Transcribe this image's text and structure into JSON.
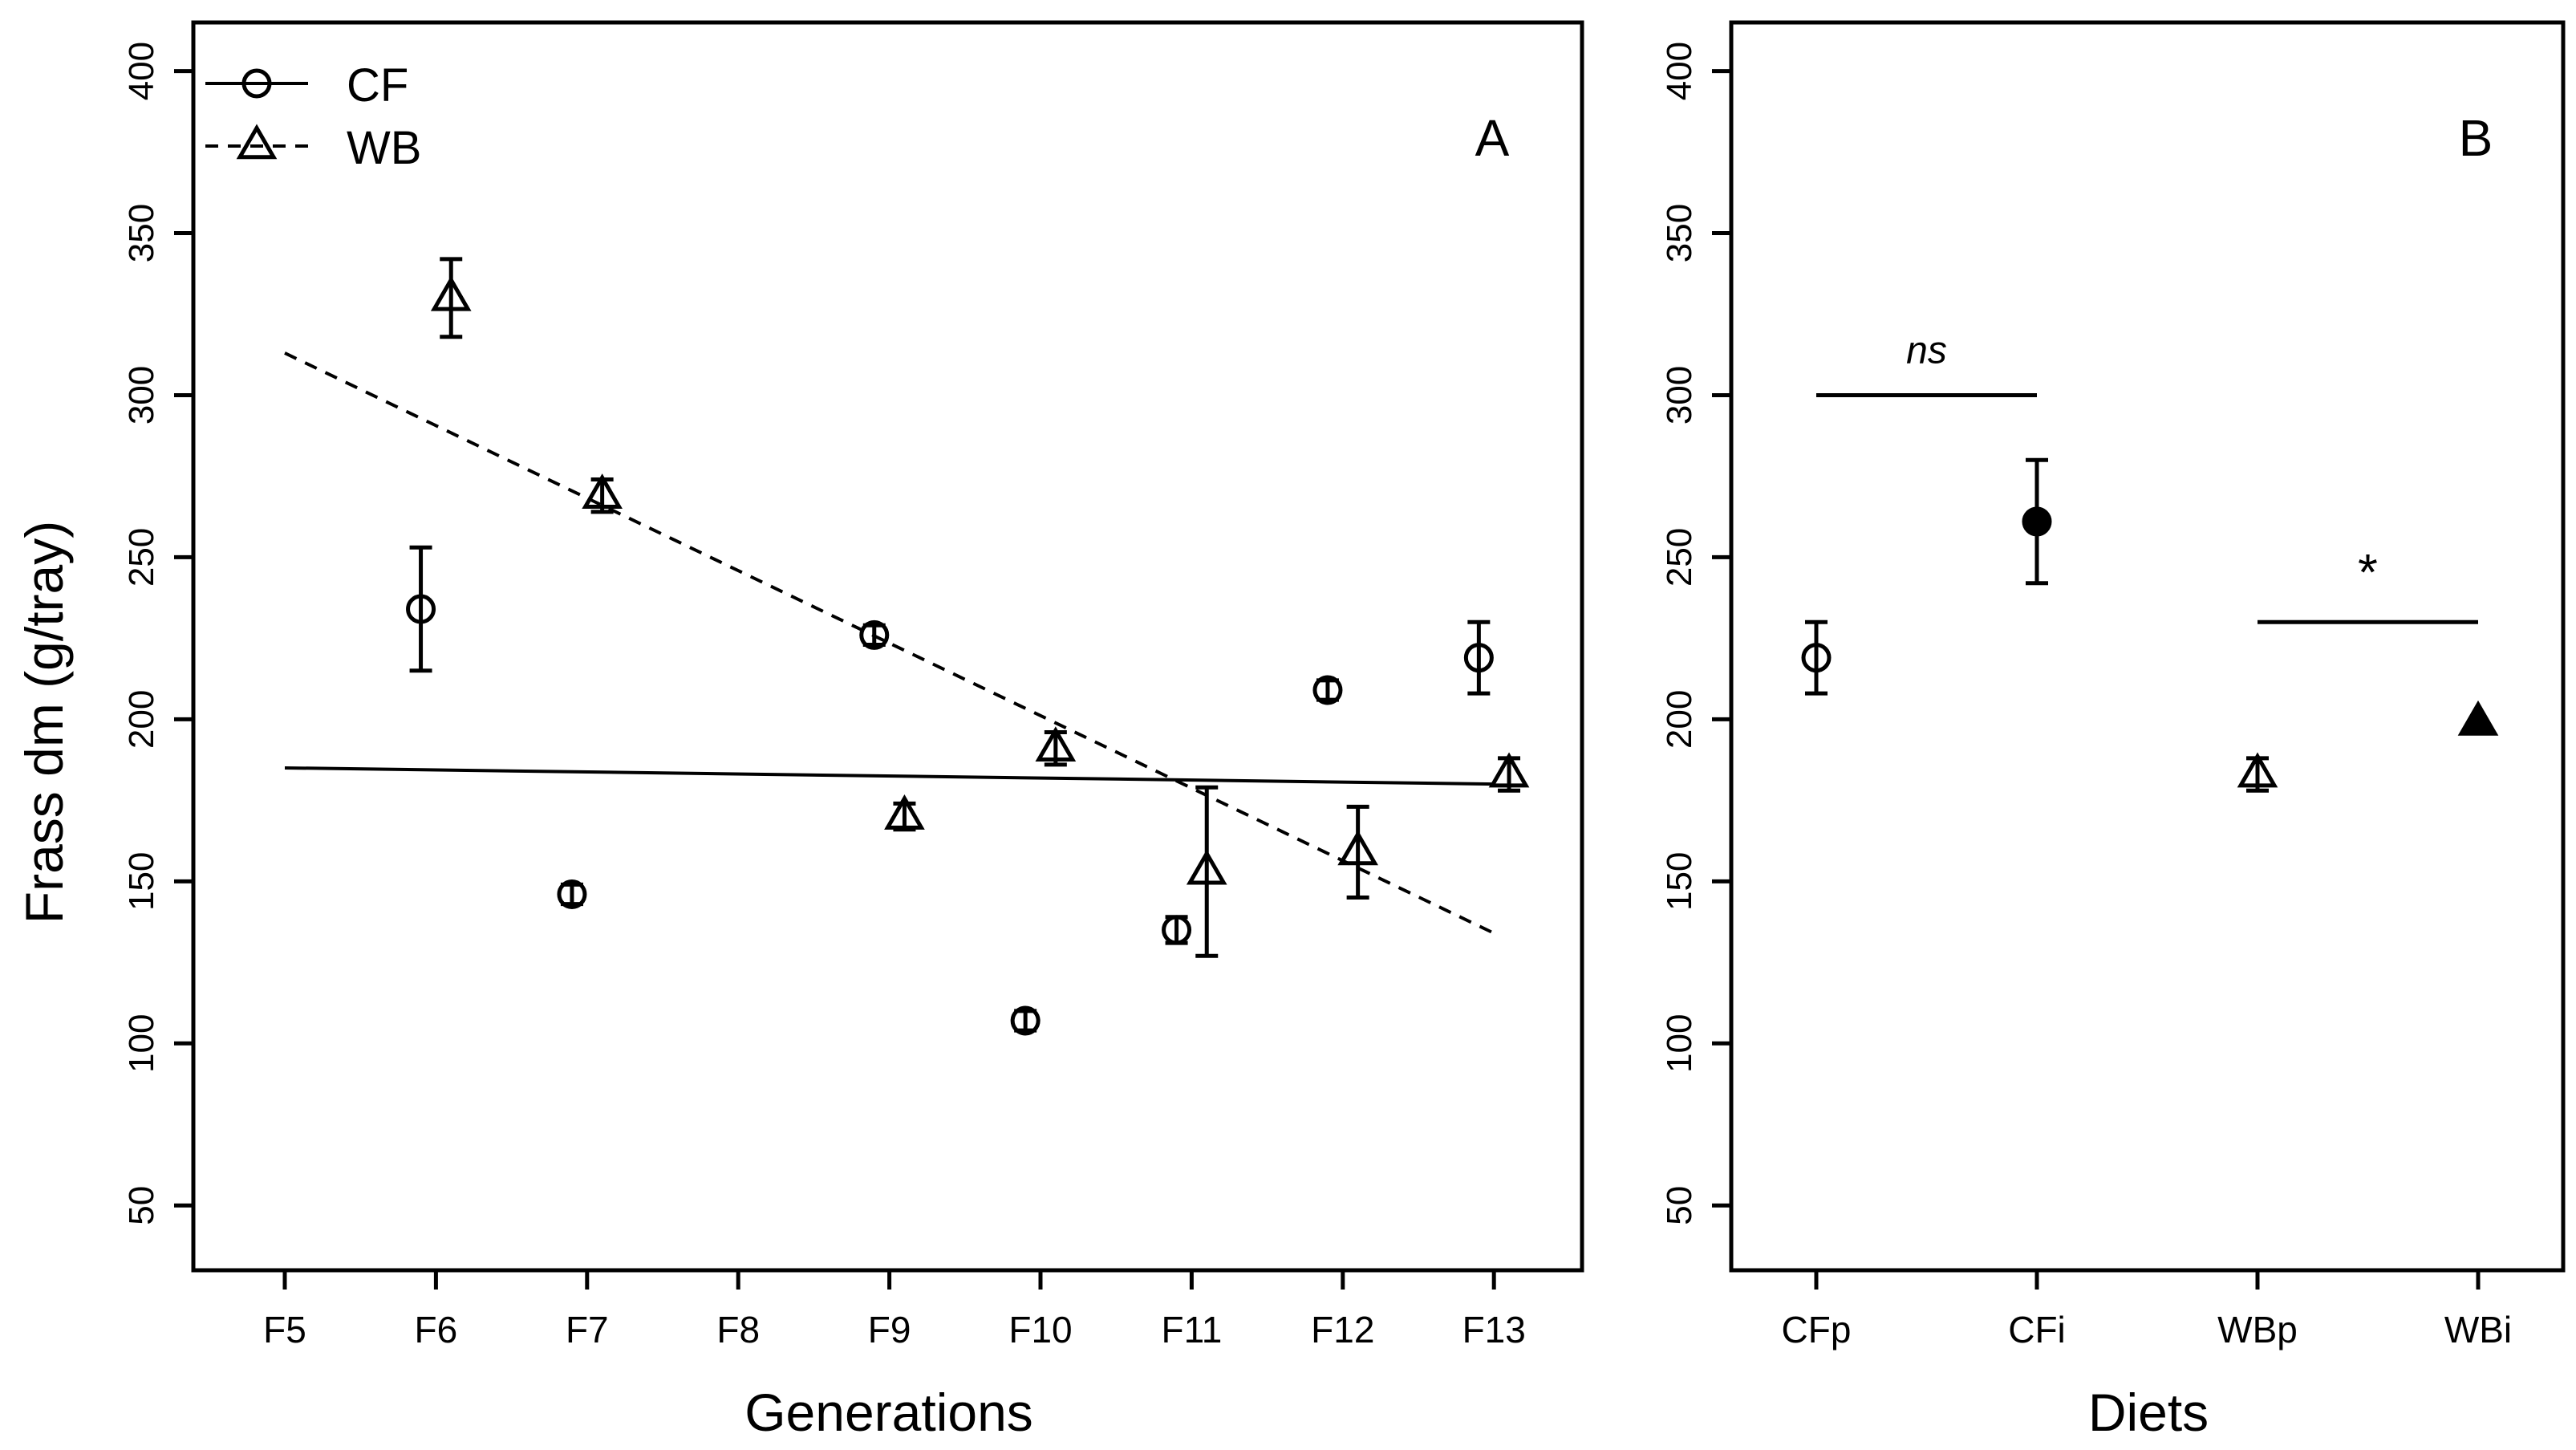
{
  "figure": {
    "ylabel": "Frass dm (g/tray)"
  },
  "chart_data": [
    {
      "panel_label": "A",
      "type": "scatter",
      "xlabel": "Generations",
      "ylabel": "Frass dm (g/tray)",
      "ylim": [
        30,
        415
      ],
      "yticks": [
        50,
        100,
        150,
        200,
        250,
        300,
        350,
        400
      ],
      "categories": [
        "F5",
        "F6",
        "F7",
        "F8",
        "F9",
        "F10",
        "F11",
        "F12",
        "F13"
      ],
      "legend": {
        "position": "top-left",
        "entries": [
          {
            "label": "CF",
            "marker": "circle",
            "line": "solid"
          },
          {
            "label": "WB",
            "marker": "triangle",
            "line": "dashed"
          }
        ]
      },
      "series": [
        {
          "name": "CF",
          "marker": "circle",
          "offset": -0.1,
          "points": [
            {
              "x": "F6",
              "y": 234,
              "err": 19
            },
            {
              "x": "F7",
              "y": 146,
              "err": 3
            },
            {
              "x": "F9",
              "y": 226,
              "err": 3
            },
            {
              "x": "F10",
              "y": 107,
              "err": 3
            },
            {
              "x": "F11",
              "y": 135,
              "err": 4
            },
            {
              "x": "F12",
              "y": 209,
              "err": 3
            },
            {
              "x": "F13",
              "y": 219,
              "err": 11
            }
          ],
          "trend": {
            "style": "solid",
            "from": {
              "x": "F5",
              "y": 185
            },
            "to": {
              "x": "F13",
              "y": 180
            }
          }
        },
        {
          "name": "WB",
          "marker": "triangle",
          "offset": 0.1,
          "points": [
            {
              "x": "F6",
              "y": 330,
              "err": 12
            },
            {
              "x": "F7",
              "y": 269,
              "err": 5
            },
            {
              "x": "F9",
              "y": 170,
              "err": 4
            },
            {
              "x": "F10",
              "y": 191,
              "err": 5
            },
            {
              "x": "F11",
              "y": 153,
              "err": 26
            },
            {
              "x": "F12",
              "y": 159,
              "err": 14
            },
            {
              "x": "F13",
              "y": 183,
              "err": 5
            }
          ],
          "trend": {
            "style": "dashed",
            "from": {
              "x": "F5",
              "y": 313
            },
            "to": {
              "x": "F13",
              "y": 134
            }
          }
        }
      ]
    },
    {
      "panel_label": "B",
      "type": "scatter",
      "xlabel": "Diets",
      "ylabel": "Frass dm (g/tray)",
      "ylim": [
        30,
        415
      ],
      "yticks": [
        50,
        100,
        150,
        200,
        250,
        300,
        350,
        400
      ],
      "categories": [
        "CFp",
        "CFi",
        "WBp",
        "WBi"
      ],
      "points": [
        {
          "x": "CFp",
          "y": 219,
          "err": 11,
          "marker": "circle",
          "filled": false
        },
        {
          "x": "CFi",
          "y": 261,
          "err": 19,
          "marker": "circle",
          "filled": true
        },
        {
          "x": "WBp",
          "y": 183,
          "err": 5,
          "marker": "triangle",
          "filled": false
        },
        {
          "x": "WBi",
          "y": 199,
          "err": 0,
          "marker": "triangle",
          "filled": true
        }
      ],
      "annotations": [
        {
          "text": "ns",
          "italic": true,
          "from": "CFp",
          "to": "CFi",
          "y": 300
        },
        {
          "text": "*",
          "italic": false,
          "from": "WBp",
          "to": "WBi",
          "y": 230
        }
      ]
    }
  ]
}
